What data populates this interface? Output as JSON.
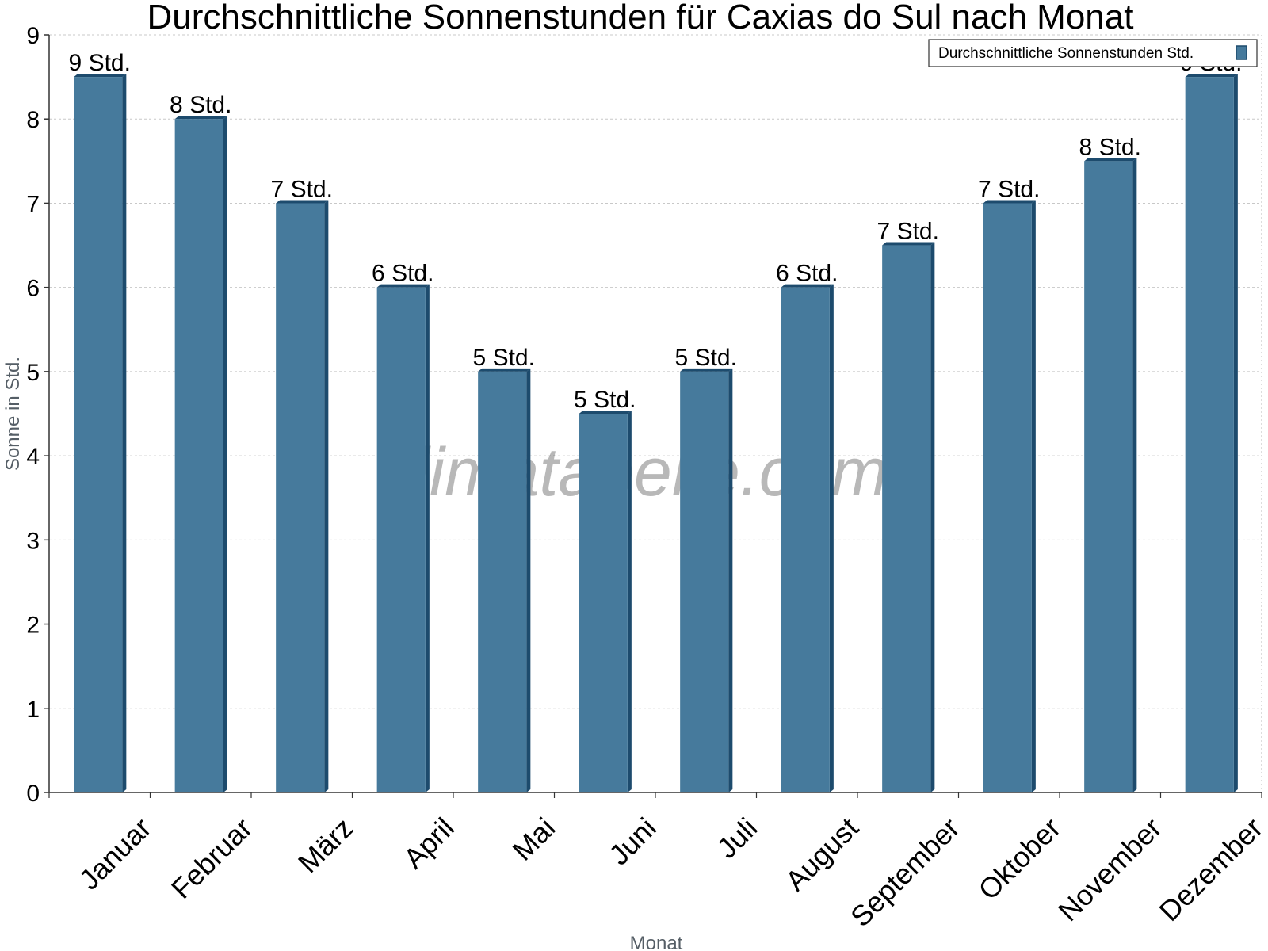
{
  "chart_data": {
    "type": "bar",
    "title": "Durchschnittliche Sonnenstunden für Caxias do Sul nach Monat",
    "xlabel": "Monat",
    "ylabel": "Sonne in Std.",
    "ylim": [
      0,
      9
    ],
    "yticks": [
      "0",
      "1",
      "2",
      "3",
      "4",
      "5",
      "6",
      "7",
      "8",
      "9"
    ],
    "grid": true,
    "legend_position": "top-right",
    "categories": [
      "Januar",
      "Februar",
      "März",
      "April",
      "Mai",
      "Juni",
      "Juli",
      "August",
      "September",
      "Oktober",
      "November",
      "Dezember"
    ],
    "series": [
      {
        "name": "Durchschnittliche Sonnenstunden Std.",
        "values": [
          8.5,
          8.0,
          7.0,
          6.0,
          5.0,
          4.5,
          5.0,
          6.0,
          6.5,
          7.0,
          7.5,
          8.5
        ],
        "labels": [
          "9 Std.",
          "8 Std.",
          "7 Std.",
          "6 Std.",
          "5 Std.",
          "5 Std.",
          "5 Std.",
          "6 Std.",
          "7 Std.",
          "7 Std.",
          "8 Std.",
          "9 Std."
        ],
        "color": "#467a9c",
        "side_color": "#1d4b6d"
      }
    ]
  },
  "watermark": "klimatabelle.com"
}
